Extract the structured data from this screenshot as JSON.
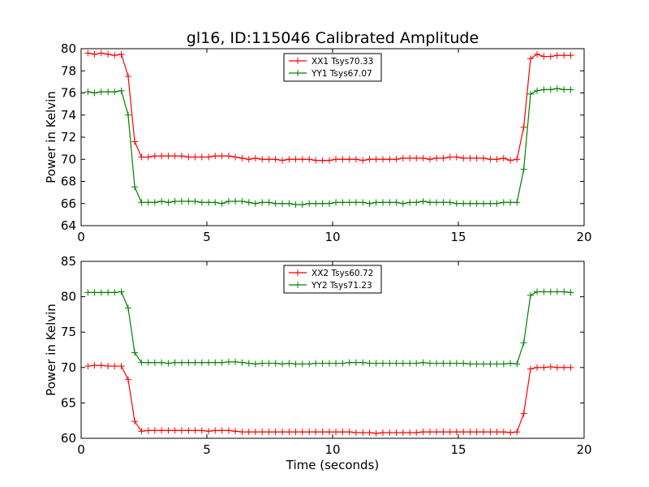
{
  "chart_data": [
    {
      "type": "line",
      "title": "gl16, ID:115046 Calibrated Amplitude",
      "xlabel": "",
      "ylabel": "Power in Kelvin",
      "xlim": [
        0,
        20
      ],
      "ylim": [
        64,
        80
      ],
      "xticks": [
        "0",
        "5",
        "10",
        "15",
        "20"
      ],
      "yticks": [
        "64",
        "66",
        "68",
        "70",
        "72",
        "74",
        "76",
        "78",
        "80"
      ],
      "legend_position": "top-center",
      "series": [
        {
          "name": "XX1 Tsys70.33",
          "color": "#ff0000",
          "x": [
            0.27,
            0.53,
            0.8,
            1.07,
            1.33,
            1.6,
            1.87,
            2.13,
            2.4,
            2.67,
            2.93,
            3.2,
            3.47,
            3.73,
            4.0,
            4.27,
            4.53,
            4.8,
            5.07,
            5.33,
            5.6,
            5.87,
            6.13,
            6.4,
            6.67,
            6.93,
            7.2,
            7.47,
            7.73,
            8.0,
            8.27,
            8.53,
            8.8,
            9.07,
            9.33,
            9.6,
            9.87,
            10.13,
            10.4,
            10.67,
            10.93,
            11.2,
            11.47,
            11.73,
            12.0,
            12.27,
            12.53,
            12.8,
            13.07,
            13.33,
            13.6,
            13.87,
            14.13,
            14.4,
            14.67,
            14.93,
            15.2,
            15.47,
            15.73,
            16.0,
            16.27,
            16.53,
            16.8,
            17.07,
            17.33,
            17.6,
            17.87,
            18.13,
            18.4,
            18.67,
            18.93,
            19.2,
            19.47
          ],
          "values": [
            79.6,
            79.5,
            79.6,
            79.5,
            79.4,
            79.5,
            77.5,
            71.6,
            70.2,
            70.2,
            70.3,
            70.3,
            70.3,
            70.3,
            70.3,
            70.2,
            70.2,
            70.2,
            70.2,
            70.3,
            70.3,
            70.3,
            70.2,
            70.1,
            70.0,
            70.1,
            70.0,
            70.0,
            70.0,
            69.9,
            70.0,
            70.0,
            70.0,
            70.0,
            69.9,
            69.9,
            69.9,
            70.0,
            70.0,
            70.0,
            70.0,
            69.9,
            70.0,
            70.0,
            70.0,
            70.0,
            70.0,
            70.1,
            70.1,
            70.1,
            70.1,
            70.0,
            70.1,
            70.1,
            70.2,
            70.2,
            70.1,
            70.1,
            70.1,
            70.1,
            70.0,
            70.0,
            70.1,
            69.9,
            70.0,
            72.9,
            79.1,
            79.5,
            79.3,
            79.3,
            79.4,
            79.4,
            79.4
          ]
        },
        {
          "name": "YY1 Tsys67.07",
          "color": "#008000",
          "x": [
            0.27,
            0.53,
            0.8,
            1.07,
            1.33,
            1.6,
            1.87,
            2.13,
            2.4,
            2.67,
            2.93,
            3.2,
            3.47,
            3.73,
            4.0,
            4.27,
            4.53,
            4.8,
            5.07,
            5.33,
            5.6,
            5.87,
            6.13,
            6.4,
            6.67,
            6.93,
            7.2,
            7.47,
            7.73,
            8.0,
            8.27,
            8.53,
            8.8,
            9.07,
            9.33,
            9.6,
            9.87,
            10.13,
            10.4,
            10.67,
            10.93,
            11.2,
            11.47,
            11.73,
            12.0,
            12.27,
            12.53,
            12.8,
            13.07,
            13.33,
            13.6,
            13.87,
            14.13,
            14.4,
            14.67,
            14.93,
            15.2,
            15.47,
            15.73,
            16.0,
            16.27,
            16.53,
            16.8,
            17.07,
            17.33,
            17.6,
            17.87,
            18.13,
            18.4,
            18.67,
            18.93,
            19.2,
            19.47
          ],
          "values": [
            76.1,
            76.0,
            76.1,
            76.1,
            76.1,
            76.2,
            74.0,
            67.5,
            66.1,
            66.1,
            66.1,
            66.2,
            66.1,
            66.2,
            66.2,
            66.2,
            66.2,
            66.1,
            66.1,
            66.1,
            66.0,
            66.2,
            66.2,
            66.2,
            66.1,
            66.0,
            66.1,
            66.1,
            66.0,
            66.0,
            66.0,
            65.9,
            65.9,
            66.0,
            66.0,
            66.0,
            66.0,
            66.1,
            66.1,
            66.1,
            66.1,
            66.1,
            66.0,
            66.1,
            66.1,
            66.1,
            66.1,
            66.0,
            66.1,
            66.1,
            66.2,
            66.1,
            66.1,
            66.1,
            66.1,
            66.0,
            66.0,
            66.0,
            66.0,
            66.0,
            66.0,
            66.0,
            66.1,
            66.1,
            66.1,
            69.1,
            75.9,
            76.2,
            76.3,
            76.3,
            76.4,
            76.3,
            76.3
          ]
        }
      ]
    },
    {
      "type": "line",
      "title": "",
      "xlabel": "Time (seconds)",
      "ylabel": "Power in Kelvin",
      "xlim": [
        0,
        20
      ],
      "ylim": [
        60,
        85
      ],
      "xticks": [
        "0",
        "5",
        "10",
        "15",
        "20"
      ],
      "yticks": [
        "60",
        "65",
        "70",
        "75",
        "80",
        "85"
      ],
      "legend_position": "top-center",
      "series": [
        {
          "name": "XX2 Tsys60.72",
          "color": "#ff0000",
          "x": [
            0.27,
            0.53,
            0.8,
            1.07,
            1.33,
            1.6,
            1.87,
            2.13,
            2.4,
            2.67,
            2.93,
            3.2,
            3.47,
            3.73,
            4.0,
            4.27,
            4.53,
            4.8,
            5.07,
            5.33,
            5.6,
            5.87,
            6.13,
            6.4,
            6.67,
            6.93,
            7.2,
            7.47,
            7.73,
            8.0,
            8.27,
            8.53,
            8.8,
            9.07,
            9.33,
            9.6,
            9.87,
            10.13,
            10.4,
            10.67,
            10.93,
            11.2,
            11.47,
            11.73,
            12.0,
            12.27,
            12.53,
            12.8,
            13.07,
            13.33,
            13.6,
            13.87,
            14.13,
            14.4,
            14.67,
            14.93,
            15.2,
            15.47,
            15.73,
            16.0,
            16.27,
            16.53,
            16.8,
            17.07,
            17.33,
            17.6,
            17.87,
            18.13,
            18.4,
            18.67,
            18.93,
            19.2,
            19.47
          ],
          "values": [
            70.2,
            70.3,
            70.3,
            70.2,
            70.2,
            70.2,
            68.3,
            62.4,
            61.0,
            61.1,
            61.1,
            61.1,
            61.1,
            61.1,
            61.1,
            61.1,
            61.1,
            61.1,
            61.0,
            61.1,
            61.1,
            61.1,
            61.0,
            60.9,
            60.9,
            60.9,
            60.9,
            60.9,
            60.9,
            60.9,
            60.9,
            60.9,
            60.9,
            60.9,
            60.9,
            60.9,
            60.9,
            60.9,
            60.9,
            60.9,
            60.8,
            60.8,
            60.8,
            60.7,
            60.8,
            60.8,
            60.8,
            60.8,
            60.8,
            60.8,
            60.9,
            60.9,
            60.9,
            60.9,
            60.9,
            60.9,
            60.9,
            60.9,
            60.9,
            60.9,
            60.9,
            60.9,
            60.9,
            60.8,
            60.9,
            63.5,
            69.8,
            70.0,
            70.0,
            70.1,
            70.0,
            70.0,
            70.0
          ]
        },
        {
          "name": "YY2 Tsys71.23",
          "color": "#008000",
          "x": [
            0.27,
            0.53,
            0.8,
            1.07,
            1.33,
            1.6,
            1.87,
            2.13,
            2.4,
            2.67,
            2.93,
            3.2,
            3.47,
            3.73,
            4.0,
            4.27,
            4.53,
            4.8,
            5.07,
            5.33,
            5.6,
            5.87,
            6.13,
            6.4,
            6.67,
            6.93,
            7.2,
            7.47,
            7.73,
            8.0,
            8.27,
            8.53,
            8.8,
            9.07,
            9.33,
            9.6,
            9.87,
            10.13,
            10.4,
            10.67,
            10.93,
            11.2,
            11.47,
            11.73,
            12.0,
            12.27,
            12.53,
            12.8,
            13.07,
            13.33,
            13.6,
            13.87,
            14.13,
            14.4,
            14.67,
            14.93,
            15.2,
            15.47,
            15.73,
            16.0,
            16.27,
            16.53,
            16.8,
            17.07,
            17.33,
            17.6,
            17.87,
            18.13,
            18.4,
            18.67,
            18.93,
            19.2,
            19.47
          ],
          "values": [
            80.6,
            80.6,
            80.6,
            80.6,
            80.6,
            80.7,
            78.4,
            72.1,
            70.7,
            70.7,
            70.7,
            70.7,
            70.6,
            70.7,
            70.7,
            70.7,
            70.7,
            70.7,
            70.7,
            70.7,
            70.7,
            70.8,
            70.8,
            70.7,
            70.6,
            70.5,
            70.6,
            70.6,
            70.6,
            70.5,
            70.6,
            70.5,
            70.5,
            70.5,
            70.6,
            70.6,
            70.6,
            70.6,
            70.6,
            70.7,
            70.7,
            70.7,
            70.6,
            70.6,
            70.6,
            70.6,
            70.6,
            70.6,
            70.6,
            70.6,
            70.7,
            70.6,
            70.6,
            70.6,
            70.6,
            70.6,
            70.6,
            70.5,
            70.5,
            70.5,
            70.5,
            70.5,
            70.5,
            70.6,
            70.5,
            73.5,
            80.2,
            80.7,
            80.7,
            80.7,
            80.7,
            80.7,
            80.6
          ]
        }
      ]
    }
  ]
}
